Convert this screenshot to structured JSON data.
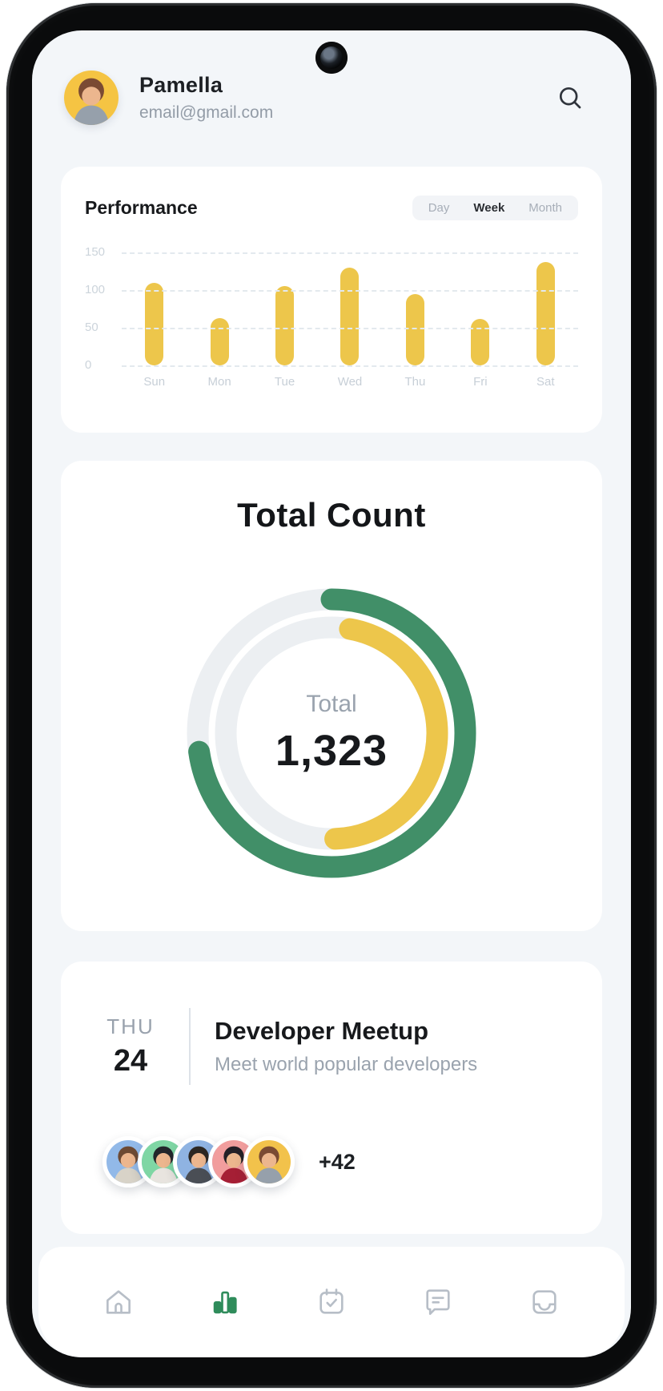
{
  "header": {
    "name": "Pamella",
    "email": "email@gmail.com",
    "search_icon": "magnifier",
    "avatar": {
      "bg": "#f5c443",
      "hair": "#7a4a33",
      "shirt": "#96a0ab"
    }
  },
  "performance": {
    "title": "Performance",
    "tabs": [
      {
        "label": "Day",
        "active": false
      },
      {
        "label": "Week",
        "active": true
      },
      {
        "label": "Month",
        "active": false
      }
    ]
  },
  "chart_data": [
    {
      "type": "bar",
      "title": "Performance",
      "categories": [
        "Sun",
        "Mon",
        "Tue",
        "Wed",
        "Thu",
        "Fri",
        "Sat"
      ],
      "values": [
        110,
        63,
        105,
        130,
        95,
        62,
        137
      ],
      "ylim": [
        0,
        150
      ],
      "y_ticks": [
        150,
        100,
        50,
        0
      ],
      "bar_color": "#edc64b",
      "grid": "dashed-horizontal",
      "legend": "none"
    },
    {
      "type": "donut",
      "title": "Total Count",
      "center_label": "Total",
      "center_value": "1,323",
      "track_color": "#eceff2",
      "segments": [
        {
          "name": "outer",
          "color": "#418f68",
          "start_deg": 0,
          "sweep_deg": 262
        },
        {
          "name": "inner",
          "color": "#edc64b",
          "start_deg": 10,
          "sweep_deg": 168
        }
      ]
    }
  ],
  "meetup": {
    "weekday": "THU",
    "day": "24",
    "title": "Developer Meetup",
    "subtitle": "Meet world popular developers",
    "more_count": "+42",
    "avatars": [
      {
        "bg": "#92b9e8",
        "hair": "#6d4a33",
        "shirt": "#d8d3c8"
      },
      {
        "bg": "#7fd6a4",
        "hair": "#23262b",
        "shirt": "#e8e4df"
      },
      {
        "bg": "#8fb3e2",
        "hair": "#2c2722",
        "shirt": "#4a4e55"
      },
      {
        "bg": "#f19d9d",
        "hair": "#241f26",
        "shirt": "#a51f35"
      },
      {
        "bg": "#f2c24b",
        "hair": "#7a4a33",
        "shirt": "#96a0ab"
      }
    ]
  },
  "nav": {
    "active_color": "#2f8c5b",
    "inactive_color": "#b7bec7",
    "items": [
      {
        "name": "home",
        "icon": "home-icon",
        "active": false
      },
      {
        "name": "stats",
        "icon": "bar-chart-icon",
        "active": true
      },
      {
        "name": "schedule",
        "icon": "calendar-check-icon",
        "active": false
      },
      {
        "name": "messages",
        "icon": "chat-icon",
        "active": false
      },
      {
        "name": "inbox",
        "icon": "inbox-icon",
        "active": false
      }
    ]
  }
}
